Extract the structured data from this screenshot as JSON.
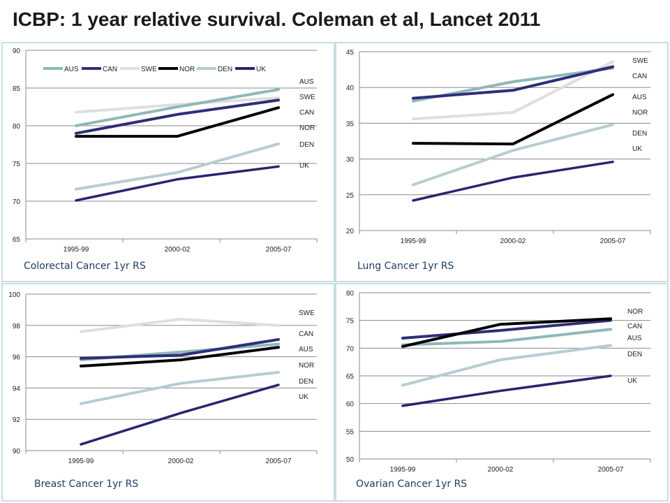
{
  "title": "ICBP: 1 year relative survival. Coleman et al, Lancet 2011",
  "colors": {
    "AUS": "#8fb8b8",
    "CAN": "#2e2e7a",
    "SWE": "#dedede",
    "NOR": "#000000",
    "DEN": "#b5cdd2",
    "UK": "#26266e"
  },
  "chart_data": [
    {
      "type": "line",
      "caption": "Colorectal Cancer 1yr RS",
      "categories": [
        "1995-99",
        "2000-02",
        "2005-07"
      ],
      "ylim": [
        65,
        90
      ],
      "yticks": [
        65,
        70,
        75,
        80,
        85,
        90
      ],
      "legend": [
        "AUS",
        "CAN",
        "SWE",
        "NOR",
        "DEN",
        "UK"
      ],
      "series": [
        {
          "name": "AUS",
          "values": [
            80.0,
            82.5,
            84.8
          ]
        },
        {
          "name": "CAN",
          "values": [
            79.0,
            81.5,
            83.4
          ]
        },
        {
          "name": "SWE",
          "values": [
            81.8,
            82.8,
            83.7
          ]
        },
        {
          "name": "NOR",
          "values": [
            78.6,
            78.6,
            82.4
          ]
        },
        {
          "name": "DEN",
          "values": [
            71.6,
            73.8,
            77.6
          ]
        },
        {
          "name": "UK",
          "values": [
            70.1,
            72.9,
            74.6
          ]
        }
      ],
      "end_labels": [
        "AUS",
        "SWE",
        "CAN",
        "NOR",
        "DEN",
        "UK"
      ]
    },
    {
      "type": "line",
      "caption": "Lung Cancer 1yr RS",
      "categories": [
        "1995-99",
        "2000-02",
        "2005-07"
      ],
      "ylim": [
        20,
        45
      ],
      "yticks": [
        20,
        25,
        30,
        35,
        40,
        45
      ],
      "series": [
        {
          "name": "AUS",
          "values": [
            38.1,
            40.8,
            42.7
          ]
        },
        {
          "name": "CAN",
          "values": [
            38.5,
            39.6,
            42.9
          ]
        },
        {
          "name": "SWE",
          "values": [
            35.6,
            36.5,
            43.6
          ]
        },
        {
          "name": "NOR",
          "values": [
            32.2,
            32.1,
            39.0
          ]
        },
        {
          "name": "DEN",
          "values": [
            26.4,
            31.2,
            34.8
          ]
        },
        {
          "name": "UK",
          "values": [
            24.2,
            27.4,
            29.6
          ]
        }
      ],
      "end_labels": [
        "SWE",
        "CAN",
        "AUS",
        "NOR",
        "DEN",
        "UK"
      ]
    },
    {
      "type": "line",
      "caption": "Breast Cancer 1yr RS",
      "categories": [
        "1995-99",
        "2000-02",
        "2005-07"
      ],
      "ylim": [
        90,
        100
      ],
      "yticks": [
        90,
        92,
        94,
        96,
        98,
        100
      ],
      "series": [
        {
          "name": "AUS",
          "values": [
            95.8,
            96.3,
            96.8
          ]
        },
        {
          "name": "CAN",
          "values": [
            95.9,
            96.1,
            97.1
          ]
        },
        {
          "name": "SWE",
          "values": [
            97.6,
            98.4,
            98.0
          ]
        },
        {
          "name": "NOR",
          "values": [
            95.4,
            95.8,
            96.6
          ]
        },
        {
          "name": "DEN",
          "values": [
            93.0,
            94.3,
            95.0
          ]
        },
        {
          "name": "UK",
          "values": [
            90.4,
            92.4,
            94.2
          ]
        }
      ],
      "end_labels": [
        "SWE",
        "CAN",
        "AUS",
        "NOR",
        "DEN",
        "UK"
      ]
    },
    {
      "type": "line",
      "caption": "Ovarian Cancer 1yr RS",
      "categories": [
        "1995-99",
        "2000-02",
        "2005-07"
      ],
      "ylim": [
        50,
        80
      ],
      "yticks": [
        50,
        55,
        60,
        65,
        70,
        75,
        80
      ],
      "series": [
        {
          "name": "AUS",
          "values": [
            70.6,
            71.2,
            73.4
          ]
        },
        {
          "name": "CAN",
          "values": [
            71.8,
            73.2,
            75.0
          ]
        },
        {
          "name": "NOR",
          "values": [
            70.3,
            74.3,
            75.3
          ]
        },
        {
          "name": "DEN",
          "values": [
            63.3,
            67.9,
            70.5
          ]
        },
        {
          "name": "UK",
          "values": [
            59.6,
            62.3,
            65.0
          ]
        }
      ],
      "end_labels": [
        "NOR",
        "CAN",
        "AUS",
        "DEN",
        "UK"
      ]
    }
  ]
}
